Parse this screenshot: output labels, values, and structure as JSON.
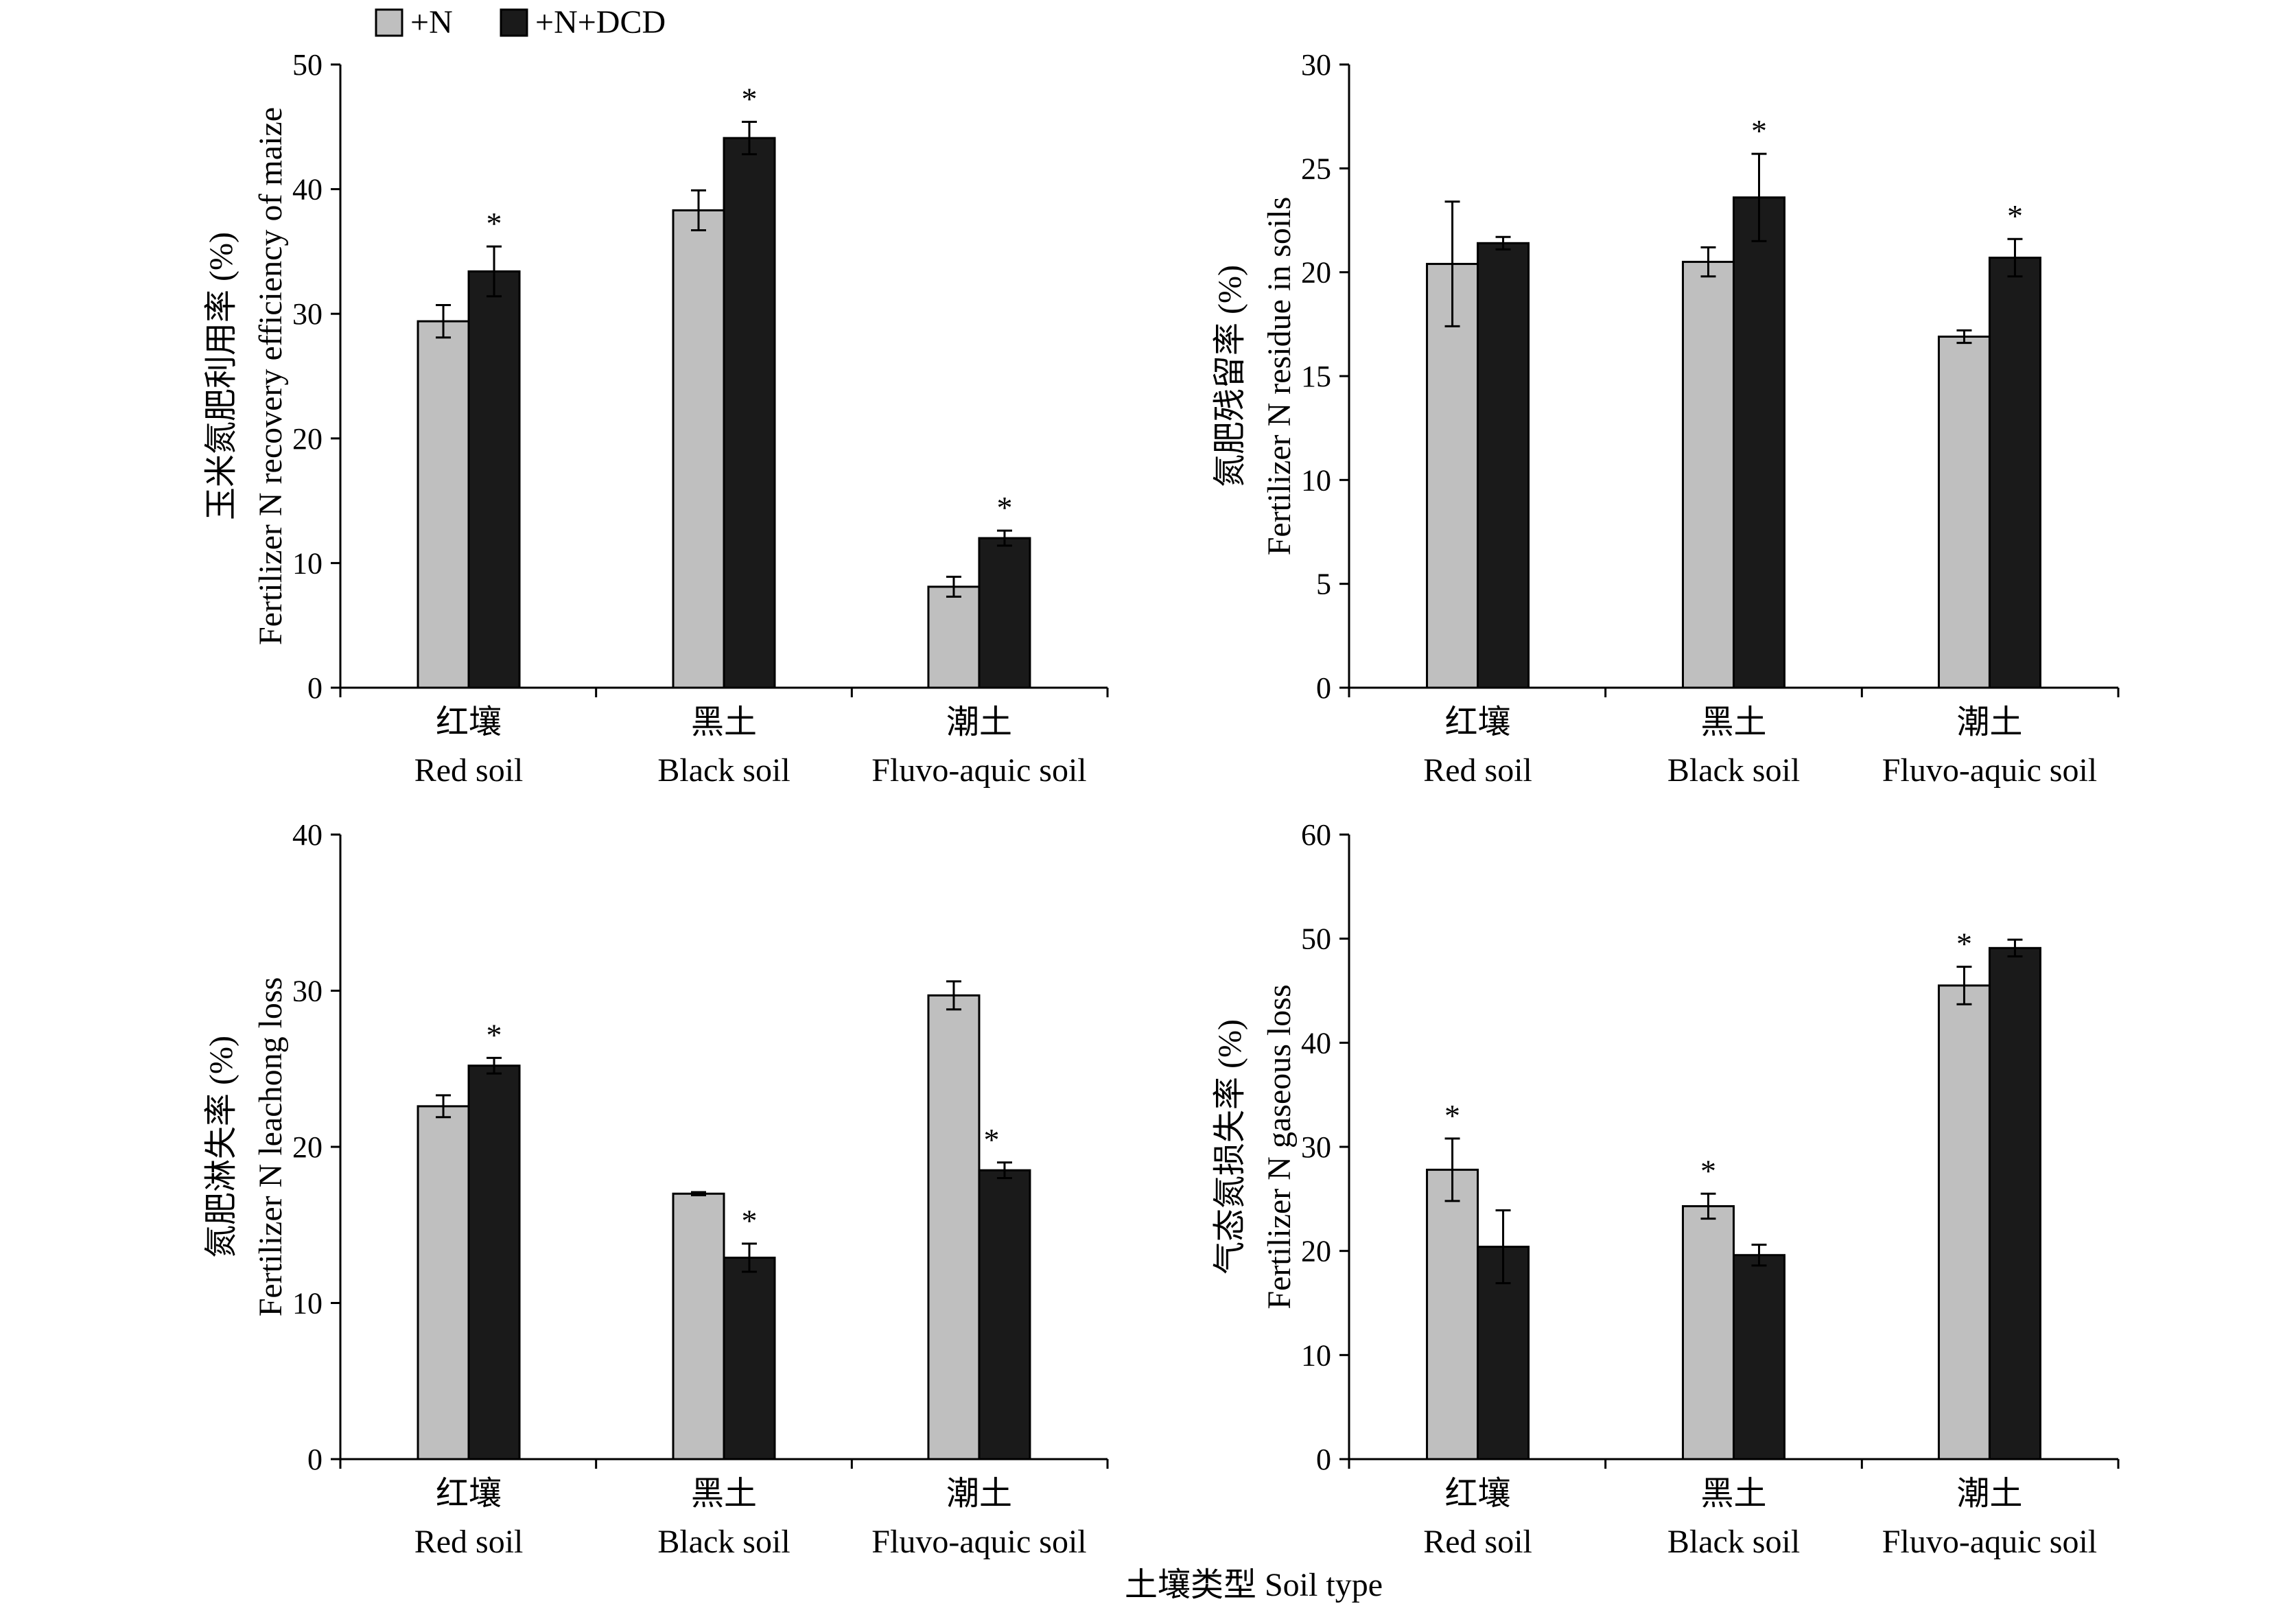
{
  "legend": {
    "entries": [
      {
        "label": "+N",
        "color": "#bfbfbf"
      },
      {
        "label": "+N+DCD",
        "color": "#1a1a1a"
      }
    ]
  },
  "x_title": "土壤类型 Soil type",
  "chart_data": [
    {
      "type": "bar",
      "categories": [
        [
          "红壤",
          "Red soil"
        ],
        [
          "黑土",
          "Black soil"
        ],
        [
          "潮土",
          "Fluvo-aquic soil"
        ]
      ],
      "ylabel": [
        "玉米氮肥利用率 (%)",
        "Fertilizer N recovery efficiency of maize"
      ],
      "ylim": [
        0,
        50
      ],
      "yticks": [
        0,
        10,
        20,
        30,
        40,
        50
      ],
      "series": [
        {
          "name": "+N",
          "values": [
            29.4,
            38.3,
            8.1
          ],
          "errors": [
            1.3,
            1.6,
            0.8
          ]
        },
        {
          "name": "+N+DCD",
          "values": [
            33.4,
            44.1,
            12.0
          ],
          "errors": [
            2.0,
            1.3,
            0.6
          ]
        }
      ],
      "significance": [
        {
          "category": 0,
          "series": 1,
          "label": "*"
        },
        {
          "category": 1,
          "series": 1,
          "label": "*"
        },
        {
          "category": 2,
          "series": 1,
          "label": "*"
        }
      ]
    },
    {
      "type": "bar",
      "categories": [
        [
          "红壤",
          "Red soil"
        ],
        [
          "黑土",
          "Black soil"
        ],
        [
          "潮土",
          "Fluvo-aquic soil"
        ]
      ],
      "ylabel": [
        "氮肥残留率 (%)",
        "Fertilizer N residue in soils"
      ],
      "ylim": [
        0,
        30
      ],
      "yticks": [
        0,
        5,
        10,
        15,
        20,
        25,
        30
      ],
      "series": [
        {
          "name": "+N",
          "values": [
            20.4,
            20.5,
            16.9
          ],
          "errors": [
            3.0,
            0.7,
            0.3
          ]
        },
        {
          "name": "+N+DCD",
          "values": [
            21.4,
            23.6,
            20.7
          ],
          "errors": [
            0.3,
            2.1,
            0.9
          ]
        }
      ],
      "significance": [
        {
          "category": 1,
          "series": 1,
          "label": "*"
        },
        {
          "category": 2,
          "series": 1,
          "label": "*"
        }
      ]
    },
    {
      "type": "bar",
      "categories": [
        [
          "红壤",
          "Red soil"
        ],
        [
          "黑土",
          "Black soil"
        ],
        [
          "潮土",
          "Fluvo-aquic soil"
        ]
      ],
      "ylabel": [
        "氮肥淋失率 (%)",
        "Fertilizer N leachong loss"
      ],
      "ylim": [
        0,
        40
      ],
      "yticks": [
        0,
        10,
        20,
        30,
        40
      ],
      "series": [
        {
          "name": "+N",
          "values": [
            22.6,
            17.0,
            29.7
          ],
          "errors": [
            0.7,
            0.1,
            0.9
          ]
        },
        {
          "name": "+N+DCD",
          "values": [
            25.2,
            12.9,
            18.5
          ],
          "errors": [
            0.5,
            0.9,
            0.5
          ]
        }
      ],
      "significance": [
        {
          "category": 0,
          "series": 1,
          "label": "*"
        },
        {
          "category": 1,
          "series": 1,
          "label": "*"
        },
        {
          "category": 2,
          "series": 1,
          "label": "*"
        }
      ]
    },
    {
      "type": "bar",
      "categories": [
        [
          "红壤",
          "Red soil"
        ],
        [
          "黑土",
          "Black soil"
        ],
        [
          "潮土",
          "Fluvo-aquic soil"
        ]
      ],
      "ylabel": [
        "气态氮损失率 (%)",
        "Fertilizer N gaseous loss"
      ],
      "ylim": [
        0,
        60
      ],
      "yticks": [
        0,
        10,
        20,
        30,
        40,
        50,
        60
      ],
      "series": [
        {
          "name": "+N",
          "values": [
            27.8,
            24.3,
            45.5
          ],
          "errors": [
            3.0,
            1.2,
            1.8
          ]
        },
        {
          "name": "+N+DCD",
          "values": [
            20.4,
            19.6,
            49.1
          ],
          "errors": [
            3.5,
            1.0,
            0.8
          ]
        }
      ],
      "significance": [
        {
          "category": 0,
          "series": 0,
          "label": "*"
        },
        {
          "category": 1,
          "series": 0,
          "label": "*"
        },
        {
          "category": 2,
          "series": 0,
          "label": "*"
        }
      ]
    }
  ]
}
